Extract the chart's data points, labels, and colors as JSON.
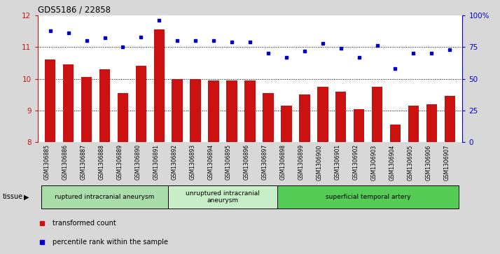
{
  "title": "GDS5186 / 22858",
  "samples": [
    "GSM1306885",
    "GSM1306886",
    "GSM1306887",
    "GSM1306888",
    "GSM1306889",
    "GSM1306890",
    "GSM1306891",
    "GSM1306892",
    "GSM1306893",
    "GSM1306894",
    "GSM1306895",
    "GSM1306896",
    "GSM1306897",
    "GSM1306898",
    "GSM1306899",
    "GSM1306900",
    "GSM1306901",
    "GSM1306902",
    "GSM1306903",
    "GSM1306904",
    "GSM1306905",
    "GSM1306906",
    "GSM1306907"
  ],
  "bar_values": [
    10.6,
    10.45,
    10.05,
    10.3,
    9.55,
    10.4,
    11.55,
    10.0,
    10.0,
    9.95,
    9.95,
    9.95,
    9.55,
    9.15,
    9.5,
    9.75,
    9.6,
    9.05,
    9.75,
    8.55,
    9.15,
    9.2,
    9.45
  ],
  "percentile_values": [
    88,
    86,
    80,
    82,
    75,
    83,
    96,
    80,
    80,
    80,
    79,
    79,
    70,
    67,
    72,
    78,
    74,
    67,
    76,
    58,
    70,
    70,
    73
  ],
  "ylim_left": [
    8,
    12
  ],
  "ylim_right": [
    0,
    100
  ],
  "yticks_left": [
    8,
    9,
    10,
    11,
    12
  ],
  "yticks_right": [
    0,
    25,
    50,
    75,
    100
  ],
  "bar_color": "#cc1111",
  "dot_color": "#0000cc",
  "background_color": "#d8d8d8",
  "plot_bg": "#ffffff",
  "tissue_groups": [
    {
      "label": "ruptured intracranial aneurysm",
      "start": 0,
      "end": 7,
      "color": "#aaddaa"
    },
    {
      "label": "unruptured intracranial\naneurysm",
      "start": 7,
      "end": 13,
      "color": "#c8eec8"
    },
    {
      "label": "superficial temporal artery",
      "start": 13,
      "end": 23,
      "color": "#55cc55"
    }
  ],
  "legend_items": [
    {
      "label": "transformed count",
      "color": "#cc1111"
    },
    {
      "label": "percentile rank within the sample",
      "color": "#0000cc"
    }
  ],
  "tissue_label": "tissue"
}
